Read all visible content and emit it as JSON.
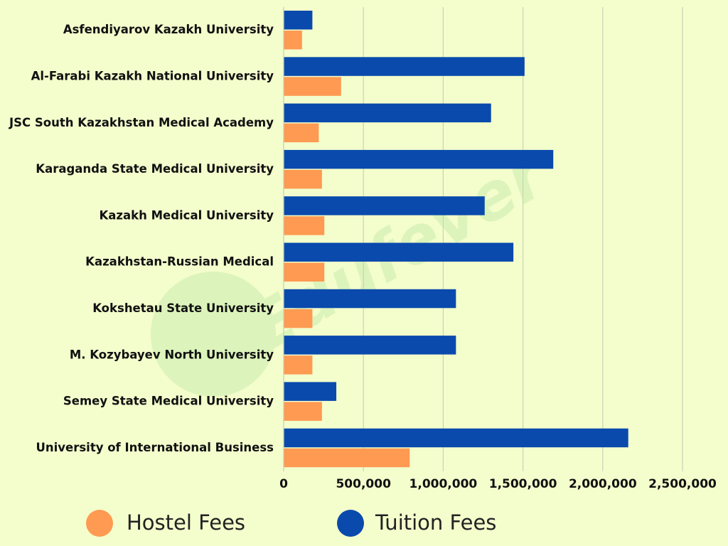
{
  "chart_data": {
    "type": "hbar-grouped",
    "watermark": "Edufever",
    "categories": [
      "Asfendiyarov Kazakh University",
      "Al-Farabi Kazakh National University",
      "JSC South Kazakhstan Medical Academy",
      "Karaganda State Medical University",
      "Kazakh Medical University",
      "Kazakhstan-Russian Medical",
      "Kokshetau State University",
      "M. Kozybayev North University",
      "Semey State Medical University",
      "University of International Business"
    ],
    "series": [
      {
        "name": "Hostel Fees",
        "color": "#ff9a52",
        "values": [
          115000,
          360000,
          220000,
          240000,
          255000,
          255000,
          180000,
          180000,
          240000,
          790000
        ]
      },
      {
        "name": "Tuition Fees",
        "color": "#0a4aad",
        "values": [
          180000,
          1510000,
          1300000,
          1690000,
          1260000,
          1440000,
          1080000,
          1080000,
          330000,
          2160000
        ]
      }
    ],
    "xlim": [
      0,
      2500000
    ],
    "xticks": [
      0,
      {
        "value": 500000,
        "label": "500,000"
      },
      {
        "value": 1000000,
        "label": "1,000,000"
      },
      {
        "value": 1500000,
        "label": "1,500,000"
      },
      {
        "value": 2000000,
        "label": "2,000,000"
      },
      {
        "value": 2500000,
        "label": "2,500,000"
      }
    ],
    "grid": true
  }
}
